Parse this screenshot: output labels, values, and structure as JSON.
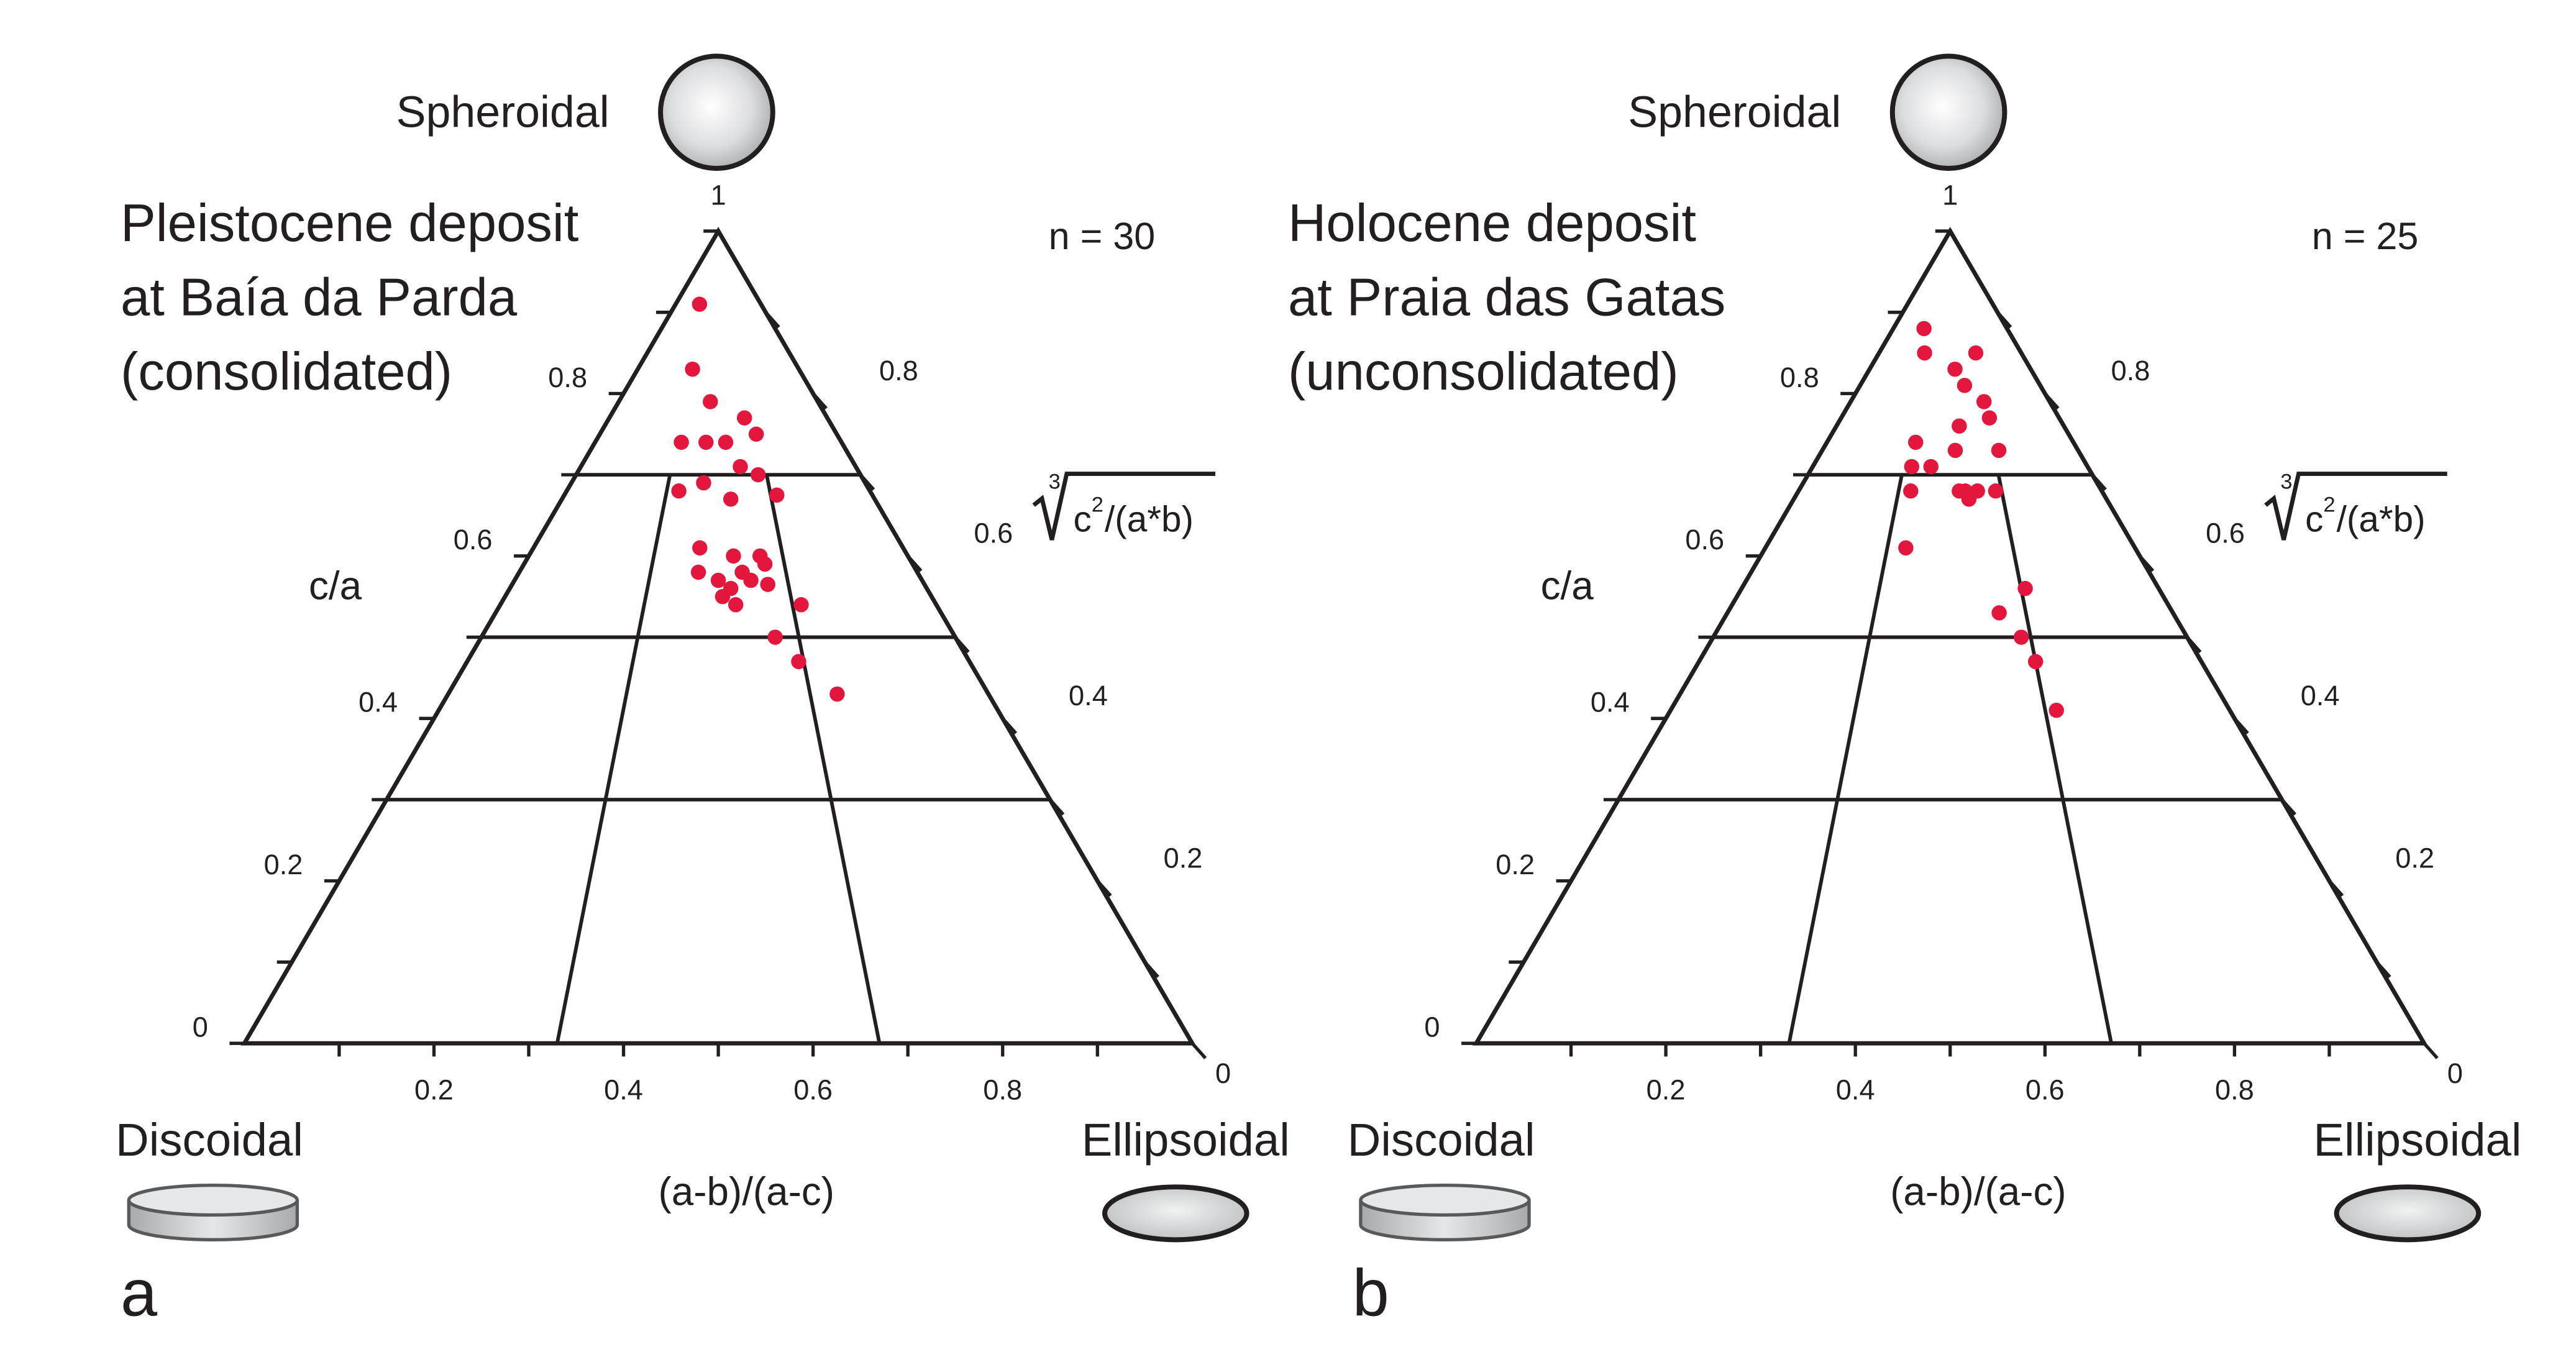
{
  "chart_data": [
    {
      "type": "ternary",
      "panel": "a",
      "title": [
        "Pleistocene deposit",
        "at Baía da Parda",
        "(consolidated)"
      ],
      "n_label": "n = 30",
      "apex_label": "Spheroidal",
      "left_label": "Discoidal",
      "right_label": "Ellipsoidal",
      "ylabel": "c/a",
      "xlabel": "(a-b)/(a-c)",
      "y2label": {
        "index": "3",
        "base": "c",
        "exp": "2",
        "rest": "/(a*b)"
      },
      "xlim": [
        0,
        1
      ],
      "ylim": [
        0,
        1
      ],
      "y2lim": [
        0,
        1
      ],
      "xticks": [
        0.2,
        0.4,
        0.6,
        0.8
      ],
      "yticks": [
        0,
        0.2,
        0.4,
        0.6,
        0.8,
        1
      ],
      "y2ticks": [
        0,
        0.2,
        0.4,
        0.6,
        0.8
      ],
      "minor_ticks": [
        0.1,
        0.3,
        0.5,
        0.7,
        0.9
      ],
      "field_levels": [
        0.7,
        0.5,
        0.3
      ],
      "field_ratios": [
        0.33,
        0.67
      ],
      "series": [
        {
          "color": "#e3173e",
          "x": [
            0.28,
            0.34,
            0.46,
            0.62,
            0.66,
            0.35,
            0.45,
            0.53,
            0.58,
            0.64,
            0.69,
            0.45,
            0.37,
            0.54,
            0.45,
            0.54,
            0.61,
            0.45,
            0.58,
            0.62,
            0.53,
            0.54,
            0.51,
            0.69,
            0.62,
            0.66,
            0.72,
            0.56,
            0.62,
            0.5
          ],
          "values": [
            0.91,
            0.83,
            0.79,
            0.77,
            0.75,
            0.74,
            0.74,
            0.74,
            0.71,
            0.7,
            0.675,
            0.69,
            0.68,
            0.67,
            0.61,
            0.6,
            0.6,
            0.58,
            0.57,
            0.565,
            0.56,
            0.54,
            0.55,
            0.54,
            0.5,
            0.47,
            0.43,
            0.58,
            0.59,
            0.57
          ]
        }
      ]
    },
    {
      "type": "ternary",
      "panel": "b",
      "title": [
        "Holocene deposit",
        "at Praia das Gatas",
        "(unconsolidated)"
      ],
      "n_label": "n = 25",
      "apex_label": "Spheroidal",
      "left_label": "Discoidal",
      "right_label": "Ellipsoidal",
      "ylabel": "c/a",
      "xlabel": "(a-b)/(a-c)",
      "y2label": {
        "index": "3",
        "base": "c",
        "exp": "2",
        "rest": "/(a*b)"
      },
      "xlim": [
        0,
        1
      ],
      "ylim": [
        0,
        1
      ],
      "y2lim": [
        0,
        1
      ],
      "xticks": [
        0.2,
        0.4,
        0.6,
        0.8
      ],
      "yticks": [
        0,
        0.2,
        0.4,
        0.6,
        0.8,
        1
      ],
      "y2ticks": [
        0,
        0.2,
        0.4,
        0.6,
        0.8
      ],
      "minor_ticks": [
        0.1,
        0.3,
        0.5,
        0.7,
        0.9
      ],
      "field_levels": [
        0.7,
        0.5,
        0.3
      ],
      "field_ratios": [
        0.33,
        0.67
      ],
      "series": [
        {
          "color": "#e3173e",
          "x": [
            0.27,
            0.32,
            0.53,
            0.68,
            0.58,
            0.67,
            0.68,
            0.54,
            0.36,
            0.43,
            0.52,
            0.69,
            0.36,
            0.37,
            0.55,
            0.59,
            0.65,
            0.56,
            0.53,
            0.38,
            0.68,
            0.61,
            0.65,
            0.67,
            0.69
          ],
          "values": [
            0.88,
            0.85,
            0.83,
            0.85,
            0.81,
            0.79,
            0.77,
            0.76,
            0.74,
            0.71,
            0.73,
            0.73,
            0.71,
            0.68,
            0.68,
            0.68,
            0.68,
            0.67,
            0.68,
            0.61,
            0.56,
            0.53,
            0.5,
            0.47,
            0.41
          ]
        }
      ]
    }
  ]
}
